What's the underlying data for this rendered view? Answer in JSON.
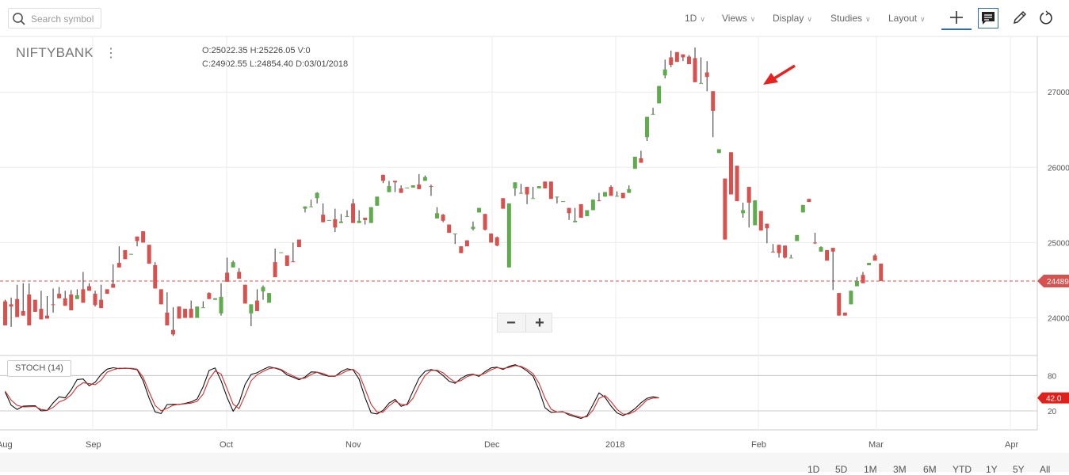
{
  "toolbar": {
    "search_placeholder": "Search symbol",
    "menus": [
      {
        "label": "1D"
      },
      {
        "label": "Views"
      },
      {
        "label": "Display"
      },
      {
        "label": "Studies"
      },
      {
        "label": "Layout"
      }
    ],
    "tools": [
      "crosshair-icon",
      "comment-icon",
      "draw-pencil-icon",
      "reset-icon"
    ]
  },
  "symbol": "NIFTYBANK",
  "ohlc": {
    "open_label": "O:",
    "open": "25022.35",
    "high_label": "H:",
    "high": "25226.05",
    "volume_label": "V:",
    "volume": "0",
    "close_label": "C:",
    "close": "24902.55",
    "low_label": "L:",
    "low": "24854.40",
    "date_label": "D:",
    "date": "03/01/2018"
  },
  "zoom": {
    "minus": "−",
    "plus": "+"
  },
  "stoch_label": "STOCH (14)",
  "ranges": [
    "1D",
    "5D",
    "1M",
    "3M",
    "6M",
    "YTD",
    "1Y",
    "5Y",
    "All"
  ],
  "colors": {
    "up": "#5fab4e",
    "down": "#d7524e",
    "stoch_k": "#111111",
    "stoch_d": "#d32f2f",
    "price_line": "#d7524e",
    "annotation_arrow": "#e8231f"
  },
  "chart_data": [
    {
      "type": "candlestick",
      "symbol": "NIFTYBANK",
      "x_ticks": [
        "Aug",
        "Sep",
        "Oct",
        "Nov",
        "Dec",
        "2018",
        "Feb",
        "Mar",
        "Apr"
      ],
      "y_ticks": [
        24000,
        25000,
        26000,
        27000
      ],
      "ylim": [
        23500,
        27700
      ],
      "last_price_label": "24489",
      "last_price": 24489,
      "annotation": "arrow pointing at the candle before the large drop in early February",
      "candles": [
        [
          24220,
          24240,
          24000,
          23900
        ],
        [
          24180,
          24270,
          23880,
          24150
        ],
        [
          24250,
          24440,
          24050,
          24010
        ],
        [
          24090,
          24460,
          24140,
          24030
        ],
        [
          24310,
          24460,
          24130,
          23900
        ],
        [
          24240,
          24190,
          24290,
          24080
        ],
        [
          24120,
          24360,
          24130,
          23980
        ],
        [
          24030,
          24290,
          24130,
          23990
        ],
        [
          24180,
          24390,
          24070,
          24170
        ],
        [
          24320,
          24410,
          24270,
          24260
        ],
        [
          24260,
          24360,
          24340,
          24160
        ],
        [
          24310,
          24370,
          24150,
          24100
        ],
        [
          24250,
          24380,
          24320,
          24300
        ],
        [
          24380,
          24610,
          24300,
          24200
        ],
        [
          24420,
          24460,
          24420,
          24360
        ],
        [
          24320,
          24360,
          24150,
          24170
        ],
        [
          24240,
          24440,
          24230,
          24130
        ],
        [
          24380,
          24330,
          24330,
          24320
        ],
        [
          24450,
          24710,
          24520,
          24400
        ],
        [
          24730,
          24950,
          24760,
          24670
        ],
        [
          24900,
          24880,
          24900,
          24780
        ],
        [
          24840,
          24800,
          24930,
          24850
        ],
        [
          25080,
          25030,
          24950,
          25020
        ],
        [
          25150,
          25000,
          25070,
          25000
        ],
        [
          24970,
          24790,
          24800,
          24720
        ],
        [
          24700,
          24740,
          24520,
          24390
        ],
        [
          24380,
          24070,
          24230,
          24180
        ],
        [
          24070,
          24340,
          24210,
          23900
        ],
        [
          23840,
          24140,
          23760,
          23780
        ],
        [
          24150,
          23980,
          24070,
          23990
        ],
        [
          24120,
          24100,
          24190,
          24000
        ],
        [
          24120,
          24230,
          24180,
          24000
        ],
        [
          24000,
          24140,
          24090,
          24150
        ],
        [
          24140,
          24220,
          24240,
          24140
        ],
        [
          24330,
          24340,
          24250,
          24250
        ],
        [
          24240,
          24240,
          24340,
          24260
        ],
        [
          24060,
          24460,
          24030,
          24280
        ],
        [
          24600,
          24800,
          24660,
          24480
        ],
        [
          24670,
          24760,
          24810,
          24740
        ],
        [
          24610,
          24660,
          24630,
          24520
        ],
        [
          24440,
          24210,
          24210,
          24190
        ],
        [
          24060,
          24150,
          23890,
          24180
        ],
        [
          24230,
          24380,
          24200,
          24090
        ],
        [
          24350,
          24430,
          24240,
          24410
        ],
        [
          24200,
          24250,
          24240,
          24330
        ],
        [
          24740,
          24920,
          24770,
          24540
        ],
        [
          24870,
          24830,
          24880,
          24870
        ],
        [
          24830,
          24730,
          24760,
          24690
        ],
        [
          24750,
          25000,
          24780,
          24740
        ],
        [
          25040,
          24930,
          24990,
          24940
        ],
        [
          25450,
          25370,
          25400,
          25480
        ],
        [
          25480,
          25570,
          25620,
          25480
        ],
        [
          25590,
          25670,
          25520,
          25660
        ],
        [
          25370,
          25520,
          25350,
          25270
        ],
        [
          25300,
          25300,
          25330,
          25300
        ],
        [
          25310,
          25450,
          25140,
          25200
        ],
        [
          25260,
          25380,
          25380,
          25280
        ],
        [
          25350,
          25430,
          25490,
          25350
        ],
        [
          25520,
          25580,
          25390,
          25260
        ],
        [
          25260,
          25430,
          25340,
          25290
        ],
        [
          25330,
          25220,
          25240,
          25300
        ],
        [
          25260,
          25340,
          25300,
          25470
        ],
        [
          25490,
          25500,
          25680,
          25610
        ],
        [
          25900,
          25760,
          25790,
          25820
        ],
        [
          25670,
          25820,
          25710,
          25750
        ],
        [
          25820,
          25740,
          25670,
          25800
        ],
        [
          25720,
          25760,
          25820,
          25660
        ],
        [
          25730,
          25700,
          25730,
          25730
        ],
        [
          25730,
          25650,
          25790,
          25760
        ],
        [
          25770,
          25910,
          25890,
          25710
        ],
        [
          25820,
          25890,
          25840,
          25870
        ],
        [
          25750,
          25770,
          25620,
          25740
        ],
        [
          25320,
          25470,
          25360,
          25390
        ],
        [
          25370,
          25380,
          25270,
          25290
        ],
        [
          25240,
          25150,
          25280,
          25130
        ],
        [
          25120,
          24860,
          24980,
          25120
        ],
        [
          24950,
          24910,
          24930,
          24860
        ],
        [
          25030,
          24920,
          24960,
          24950
        ],
        [
          25180,
          25280,
          25160,
          25210
        ],
        [
          25400,
          25420,
          25410,
          25460
        ],
        [
          25380,
          25290,
          25160,
          25170
        ],
        [
          25120,
          25110,
          25000,
          25000
        ],
        [
          25070,
          25080,
          24950,
          24960
        ],
        [
          25590,
          25370,
          25470,
          25450
        ],
        [
          24670,
          25060,
          25480,
          25520
        ],
        [
          25720,
          25560,
          25620,
          25800
        ],
        [
          25650,
          25780,
          25760,
          25660
        ],
        [
          25740,
          25620,
          25510,
          25640
        ],
        [
          25590,
          25740,
          25640,
          25590
        ],
        [
          25720,
          25700,
          25750,
          25750
        ],
        [
          25810,
          25700,
          25770,
          25720
        ],
        [
          25810,
          25620,
          25620,
          25580
        ],
        [
          25600,
          25460,
          25520,
          25610
        ],
        [
          25540,
          25410,
          25630,
          25550
        ],
        [
          25460,
          25380,
          25300,
          25390
        ],
        [
          25270,
          25460,
          25340,
          25290
        ],
        [
          25510,
          25320,
          25410,
          25330
        ],
        [
          25350,
          25320,
          25400,
          25430
        ],
        [
          25430,
          25540,
          25470,
          25570
        ],
        [
          25560,
          25660,
          25600,
          25550
        ],
        [
          25610,
          25670,
          25780,
          25670
        ],
        [
          25740,
          25760,
          25720,
          25620
        ],
        [
          25620,
          25680,
          25650,
          25620
        ],
        [
          25660,
          25600,
          25760,
          25590
        ],
        [
          25660,
          25760,
          25690,
          25710
        ],
        [
          25980,
          25940,
          26130,
          26140
        ],
        [
          26120,
          26220,
          26250,
          26060
        ],
        [
          26400,
          26210,
          26350,
          26670
        ],
        [
          26700,
          26790,
          26890,
          26710
        ],
        [
          26850,
          26930,
          27020,
          27080
        ],
        [
          27220,
          27430,
          27180,
          27300
        ],
        [
          27460,
          27550,
          27330,
          27360
        ],
        [
          27530,
          27390,
          27620,
          27400
        ],
        [
          27500,
          27480,
          27410,
          27460
        ],
        [
          27470,
          27490,
          27620,
          27370
        ],
        [
          27450,
          27590,
          27270,
          27130
        ],
        [
          27110,
          27460,
          27170,
          27120
        ],
        [
          27260,
          27410,
          27010,
          27200
        ],
        [
          27010,
          26990,
          26400,
          26750
        ],
        [
          26190,
          26140,
          26320,
          26240
        ],
        [
          25850,
          25530,
          25690,
          25040
        ],
        [
          26200,
          26190,
          25690,
          25640
        ],
        [
          26020,
          25870,
          25890,
          25550
        ],
        [
          25390,
          25530,
          25330,
          25430
        ],
        [
          25740,
          25590,
          25200,
          25530
        ],
        [
          25230,
          25540,
          25260,
          25560
        ],
        [
          25420,
          25350,
          25350,
          25160
        ],
        [
          25250,
          25240,
          24990,
          25190
        ],
        [
          24880,
          24980,
          24920,
          24870
        ],
        [
          24970,
          24870,
          24800,
          24860
        ],
        [
          24960,
          24910,
          24790,
          24800
        ],
        [
          24800,
          24840,
          24990,
          24800
        ],
        [
          25020,
          24810,
          25310,
          25100
        ],
        [
          25400,
          25470,
          25650,
          25500
        ],
        [
          25580,
          25340,
          25610,
          25540
        ],
        [
          25000,
          25130,
          24980,
          24990
        ],
        [
          24880,
          24950,
          24940,
          24940
        ],
        [
          24900,
          24720,
          24770,
          24760
        ],
        [
          24930,
          24780,
          24370,
          24880
        ],
        [
          24330,
          24060,
          24210,
          24030
        ],
        [
          24070,
          24020,
          24400,
          24030
        ],
        [
          24180,
          24150,
          24490,
          24360
        ],
        [
          24420,
          24540,
          24690,
          24490
        ],
        [
          24570,
          24610,
          24750,
          24460
        ],
        [
          24700,
          24630,
          24910,
          24730
        ],
        [
          24830,
          24850,
          24770,
          24760
        ],
        [
          24720,
          24670,
          24500,
          24490
        ]
      ],
      "stoch_panel": {
        "label": "STOCH (14)",
        "y_ticks": [
          20,
          80
        ],
        "last_value_label": "42.0",
        "k": [
          52.1,
          29.7,
          22.4,
          27.9,
          28.4,
          28.6,
          20.2,
          20.7,
          33.5,
          43.9,
          42.0,
          55.6,
          73.0,
          74.1,
          62.5,
          68.6,
          81.9,
          90.8,
          93.2,
          91.6,
          92.3,
          91.5,
          90.0,
          71.1,
          41.3,
          18.3,
          15.5,
          30.7,
          31.2,
          30.9,
          32.8,
          35.2,
          40.2,
          60.8,
          88.6,
          92.8,
          71.1,
          42.7,
          19.4,
          33.8,
          64.8,
          81.7,
          84.5,
          90.2,
          94.7,
          92.5,
          89.1,
          81.0,
          77.1,
          72.8,
          77.6,
          86.0,
          85.7,
          81.1,
          78.7,
          78.6,
          86.4,
          91.4,
          89.5,
          73.9,
          42.6,
          16.7,
          14.8,
          20.9,
          33.1,
          39.5,
          27.8,
          31.2,
          53.8,
          75.4,
          87.1,
          90.1,
          87.7,
          80.0,
          70.4,
          66.8,
          75.2,
          80.7,
          82.1,
          78.5,
          86.4,
          92.9,
          94.1,
          90.3,
          95.4,
          98.3,
          94.3,
          87.6,
          78.9,
          55.5,
          25.3,
          17.4,
          18.0,
          18.7,
          13.2,
          10.1,
          7.1,
          11.8,
          30.9,
          50.5,
          43.0,
          28.2,
          16.5,
          12.1,
          16.5,
          23.9,
          33.7,
          41.4,
          43.9,
          42.0
        ],
        "d": [
          53.5,
          38.3,
          29.4,
          26.8,
          27.0,
          27.5,
          22.4,
          21.0,
          25.9,
          35.2,
          39.1,
          47.3,
          60.9,
          67.7,
          66.2,
          64.4,
          72.1,
          85.6,
          89.6,
          92.3,
          92.0,
          92.2,
          90.7,
          77.0,
          52.3,
          29.1,
          20.1,
          24.4,
          29.5,
          31.1,
          32.0,
          33.1,
          36.1,
          48.5,
          73.8,
          87.6,
          82.5,
          57.5,
          31.3,
          23.9,
          46.4,
          71.1,
          81.2,
          87.0,
          91.5,
          93.1,
          90.3,
          84.1,
          79.1,
          74.6,
          75.5,
          81.7,
          85.7,
          83.3,
          79.2,
          79.1,
          82.8,
          88.0,
          90.5,
          82.7,
          57.2,
          31.2,
          17.8,
          17.8,
          28.6,
          36.3,
          31.2,
          30.1,
          41.6,
          62.4,
          80.2,
          88.6,
          88.8,
          84.5,
          75.8,
          68.6,
          71.4,
          78.1,
          81.5,
          80.2,
          83.6,
          89.6,
          93.3,
          91.8,
          93.6,
          96.8,
          95.5,
          90.7,
          82.9,
          66.8,
          41.5,
          22.9,
          18.0,
          18.1,
          15.2,
          11.8,
          9.0,
          9.9,
          21.2,
          41.2,
          46.1,
          35.6,
          22.7,
          14.5,
          14.6,
          19.6,
          28.4,
          38.6,
          41.8,
          42.0
        ]
      }
    }
  ]
}
